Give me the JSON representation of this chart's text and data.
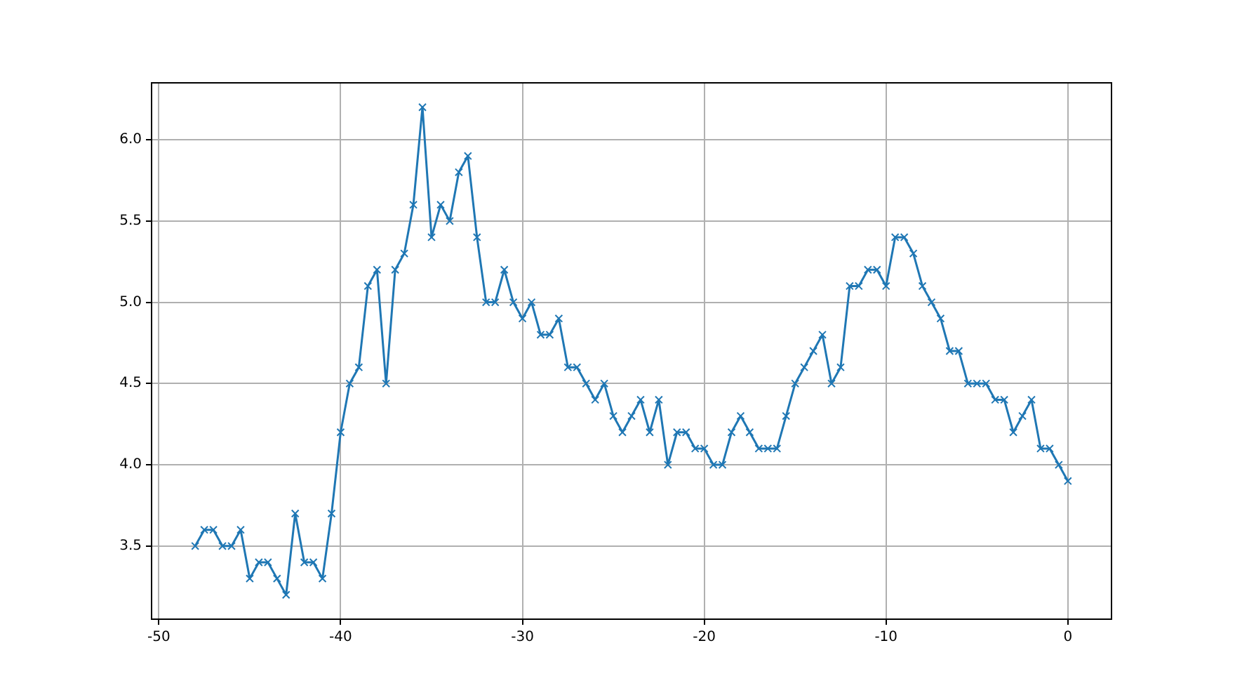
{
  "chart_data": {
    "type": "line",
    "x": [
      -48,
      -47.5,
      -47,
      -46.5,
      -46,
      -45.5,
      -45,
      -44.5,
      -44,
      -43.5,
      -43,
      -42.5,
      -42,
      -41.5,
      -41,
      -40.5,
      -40,
      -39.5,
      -39,
      -38.5,
      -38,
      -37.5,
      -37,
      -36.5,
      -36,
      -35.5,
      -35,
      -34.5,
      -34,
      -33.5,
      -33,
      -32.5,
      -32,
      -31.5,
      -31,
      -30.5,
      -30,
      -29.5,
      -29,
      -28.5,
      -28,
      -27.5,
      -27,
      -26.5,
      -26,
      -25.5,
      -25,
      -24.5,
      -24,
      -23.5,
      -23,
      -22.5,
      -22,
      -21.5,
      -21,
      -20.5,
      -20,
      -19.5,
      -19,
      -18.5,
      -18,
      -17.5,
      -17,
      -16.5,
      -16,
      -15.5,
      -15,
      -14.5,
      -14,
      -13.5,
      -13,
      -12.5,
      -12,
      -11.5,
      -11,
      -10.5,
      -10,
      -9.5,
      -9,
      -8.5,
      -8,
      -7.5,
      -7,
      -6.5,
      -6,
      -5.5,
      -5,
      -4.5,
      -4,
      -3.5,
      -3,
      -2.5,
      -2,
      -1.5,
      -1,
      -0.5,
      0
    ],
    "series": [
      {
        "color": "#1f77b4",
        "values": [
          3.5,
          3.6,
          3.6,
          3.5,
          3.5,
          3.6,
          3.3,
          3.4,
          3.4,
          3.3,
          3.2,
          3.7,
          3.4,
          3.4,
          3.3,
          3.7,
          4.2,
          4.5,
          4.6,
          5.1,
          5.2,
          4.5,
          5.2,
          5.3,
          5.6,
          6.2,
          5.4,
          5.6,
          5.5,
          5.8,
          5.9,
          5.4,
          5.0,
          5.0,
          5.2,
          5.0,
          4.9,
          5.0,
          4.8,
          4.8,
          4.9,
          4.6,
          4.6,
          4.5,
          4.4,
          4.5,
          4.3,
          4.2,
          4.3,
          4.4,
          4.2,
          4.4,
          4.0,
          4.2,
          4.2,
          4.1,
          4.1,
          4.0,
          4.0,
          4.2,
          4.3,
          4.2,
          4.1,
          4.1,
          4.1,
          4.3,
          4.5,
          4.6,
          4.7,
          4.8,
          4.5,
          4.6,
          5.1,
          5.1,
          5.2,
          5.2,
          5.1,
          5.4,
          5.4,
          5.3,
          5.1,
          5.0,
          4.9,
          4.7,
          4.7,
          4.5,
          4.5,
          4.5,
          4.4,
          4.4,
          4.2,
          4.3,
          4.4,
          4.1,
          4.1,
          4.0,
          3.9
        ]
      }
    ],
    "xlim": [
      -50.4,
      2.4
    ],
    "xticks": [
      -50,
      -40,
      -30,
      -20,
      -10,
      0
    ],
    "ylim": [
      3.05,
      6.35
    ],
    "yticks": [
      3.5,
      {
        "value": 4,
        "label": "4.0"
      },
      4.5,
      {
        "value": 5,
        "label": "5.0"
      },
      5.5,
      {
        "value": 6,
        "label": "6.0"
      }
    ],
    "grid": true,
    "marker": "cross",
    "line_style": "solid"
  }
}
